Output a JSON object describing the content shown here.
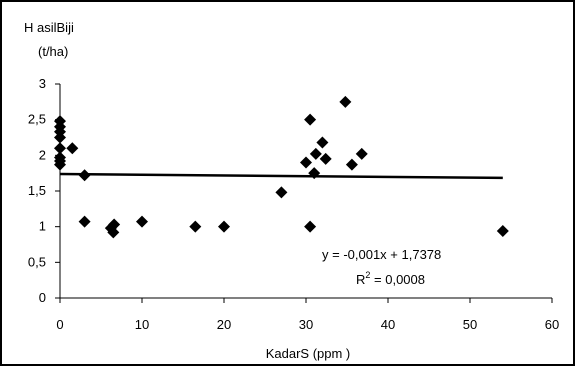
{
  "chart_data": {
    "type": "scatter",
    "ylabel_line1": "H asilBiji",
    "ylabel_line2": "(t/ha)",
    "xlabel": "KadarS (ppm )",
    "xlim": [
      0,
      60
    ],
    "ylim": [
      0,
      3
    ],
    "x_ticks": [
      "0",
      "10",
      "20",
      "30",
      "40",
      "50",
      "60"
    ],
    "y_ticks": [
      "0",
      "0,5",
      "1",
      "1,5",
      "2",
      "2,5",
      "3"
    ],
    "grid": false,
    "marker": "diamond",
    "points": [
      [
        0,
        2.48
      ],
      [
        0,
        2.4
      ],
      [
        0,
        2.33
      ],
      [
        0,
        2.25
      ],
      [
        0,
        2.1
      ],
      [
        0,
        1.97
      ],
      [
        0,
        1.92
      ],
      [
        0,
        1.87
      ],
      [
        1.5,
        2.1
      ],
      [
        3,
        1.72
      ],
      [
        3,
        1.07
      ],
      [
        6.2,
        0.98
      ],
      [
        6.5,
        0.92
      ],
      [
        6.6,
        1.03
      ],
      [
        10,
        1.07
      ],
      [
        16.5,
        1.0
      ],
      [
        20,
        1.0
      ],
      [
        27,
        1.48
      ],
      [
        30,
        1.9
      ],
      [
        30.5,
        2.5
      ],
      [
        30.5,
        1.0
      ],
      [
        31,
        1.75
      ],
      [
        31.2,
        2.02
      ],
      [
        32,
        2.18
      ],
      [
        32.4,
        1.95
      ],
      [
        34.8,
        2.75
      ],
      [
        35.6,
        1.87
      ],
      [
        36.8,
        2.02
      ],
      [
        54,
        0.94
      ]
    ],
    "trendline": {
      "slope": -0.001,
      "intercept": 1.7378,
      "x_range": [
        0,
        54
      ]
    },
    "equation_text": "y = -0,001x + 1,7378",
    "r2_label": "R",
    "r2_sup": "2",
    "r2_value": " = 0,0008"
  }
}
